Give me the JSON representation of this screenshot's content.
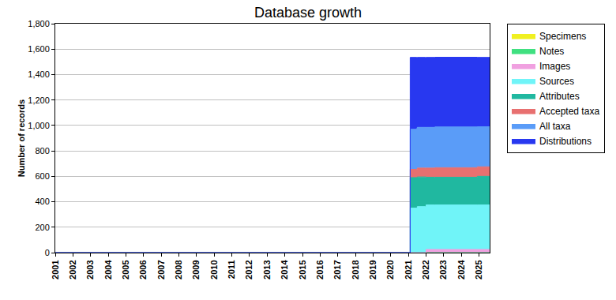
{
  "chart_data": {
    "type": "area",
    "title": "Database growth",
    "y_label": "Number of records",
    "stacked": true,
    "grid": true,
    "legend": "right",
    "line_style": "step",
    "x": [
      2001,
      2021.1,
      2021.45,
      2021.5,
      2021.95,
      2022.0,
      2022.5,
      2024.9,
      2025.6
    ],
    "xlim": [
      2001,
      2025.6
    ],
    "xticks": [
      2001,
      2002,
      2003,
      2004,
      2005,
      2006,
      2007,
      2008,
      2009,
      2010,
      2011,
      2012,
      2013,
      2014,
      2015,
      2016,
      2017,
      2018,
      2019,
      2020,
      2021,
      2022,
      2023,
      2024,
      2025
    ],
    "ylim": [
      0,
      1800
    ],
    "yticks": [
      0,
      200,
      400,
      600,
      800,
      {
        "value": 1000,
        "label": "1,000"
      },
      {
        "value": 1200,
        "label": "1,200"
      },
      {
        "value": 1400,
        "label": "1,400"
      },
      {
        "value": 1600,
        "label": "1,600"
      },
      {
        "value": 1800,
        "label": "1,800"
      }
    ],
    "series": [
      {
        "name": "Specimens",
        "color": "#f0f020",
        "values": [
          0,
          0,
          0,
          0,
          0,
          0,
          0,
          0,
          0
        ]
      },
      {
        "name": "Notes",
        "color": "#40e080",
        "values": [
          0,
          0,
          0,
          0,
          0,
          0,
          0,
          0,
          0
        ]
      },
      {
        "name": "Images",
        "color": "#f0a0e0",
        "values": [
          0,
          0,
          0,
          0,
          0,
          25,
          25,
          25,
          25
        ]
      },
      {
        "name": "Sources",
        "color": "#70f4f8",
        "values": [
          0,
          350,
          350,
          362,
          362,
          350,
          350,
          350,
          350
        ]
      },
      {
        "name": "Attributes",
        "color": "#20b8a0",
        "values": [
          0,
          240,
          240,
          233,
          233,
          218,
          218,
          225,
          225
        ]
      },
      {
        "name": "Accepted taxa",
        "color": "#e87070",
        "values": [
          0,
          65,
          65,
          70,
          70,
          72,
          75,
          75,
          75
        ]
      },
      {
        "name": "All taxa",
        "color": "#5a9cf8",
        "values": [
          0,
          315,
          320,
          320,
          320,
          320,
          320,
          315,
          315
        ]
      },
      {
        "name": "Distributions",
        "color": "#2838f0",
        "values": [
          0,
          565,
          560,
          550,
          550,
          550,
          548,
          545,
          545
        ]
      }
    ]
  }
}
